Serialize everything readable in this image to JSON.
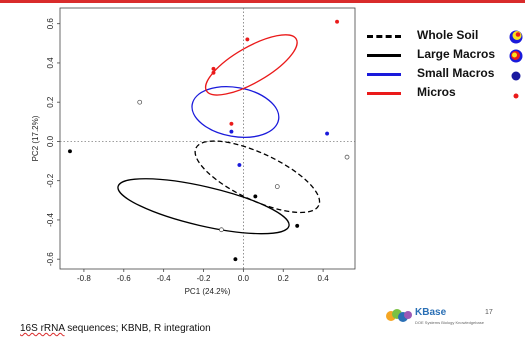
{
  "chart_data": {
    "type": "scatter",
    "xlabel": "PC1 (24.2%)",
    "ylabel": "PC2 (17.2%)",
    "xlim": [
      -0.92,
      0.56
    ],
    "ylim": [
      -0.65,
      0.68
    ],
    "xticks": [
      -0.8,
      -0.6,
      -0.4,
      -0.2,
      0.0,
      0.2,
      0.4
    ],
    "yticks": [
      -0.6,
      -0.4,
      -0.2,
      0.0,
      0.2,
      0.4,
      0.6
    ],
    "xtick_labels": [
      "-0.8",
      "-0.6",
      "-0.4",
      "-0.2",
      "0.0",
      "0.2",
      "0.4"
    ],
    "ytick_labels": [
      "-0.6",
      "-0.4",
      "-0.2",
      "0.0",
      "0.2",
      "0.4",
      "0.6"
    ],
    "reference_lines": {
      "x": 0,
      "y": 0,
      "style": "dotted"
    },
    "grid": false,
    "legend_position": "right",
    "series": [
      {
        "name": "Whole Soil",
        "color": "#000000",
        "marker": "open-circle",
        "line_style": "dashed",
        "points": [
          {
            "x": -0.52,
            "y": 0.2
          },
          {
            "x": 0.52,
            "y": -0.08
          },
          {
            "x": 0.17,
            "y": -0.23
          },
          {
            "x": -0.11,
            "y": -0.45
          }
        ],
        "ellipse": {
          "cx": 0.07,
          "cy": -0.18,
          "rx": 0.34,
          "ry": 0.12,
          "angle_deg": -25
        }
      },
      {
        "name": "Large Macros",
        "color": "#000000",
        "marker": "filled-circle",
        "line_style": "solid",
        "points": [
          {
            "x": -0.87,
            "y": -0.05
          },
          {
            "x": 0.06,
            "y": -0.28
          },
          {
            "x": 0.27,
            "y": -0.43
          },
          {
            "x": -0.04,
            "y": -0.6
          }
        ],
        "ellipse": {
          "cx": -0.2,
          "cy": -0.33,
          "rx": 0.44,
          "ry": 0.1,
          "angle_deg": -13
        }
      },
      {
        "name": "Small Macros",
        "color": "#1a1adb",
        "marker": "filled-circle",
        "line_style": "solid",
        "points": [
          {
            "x": -0.06,
            "y": 0.05
          },
          {
            "x": -0.02,
            "y": -0.12
          },
          {
            "x": 0.42,
            "y": 0.04
          }
        ],
        "ellipse": {
          "cx": -0.04,
          "cy": 0.15,
          "rx": 0.22,
          "ry": 0.125,
          "angle_deg": -10
        }
      },
      {
        "name": "Micros",
        "color": "#ea1a1a",
        "marker": "filled-circle",
        "line_style": "solid",
        "points": [
          {
            "x": -0.15,
            "y": 0.37
          },
          {
            "x": -0.15,
            "y": 0.35
          },
          {
            "x": 0.02,
            "y": 0.52
          },
          {
            "x": 0.47,
            "y": 0.61
          },
          {
            "x": -0.06,
            "y": 0.09
          }
        ],
        "ellipse": {
          "cx": 0.04,
          "cy": 0.39,
          "rx": 0.26,
          "ry": 0.09,
          "angle_deg": 30
        }
      }
    ]
  },
  "legend": {
    "items": [
      {
        "label": "Whole Soil",
        "color": "#000000",
        "dash": true,
        "icon": "tri-color-dot-icon"
      },
      {
        "label": "Large Macros",
        "color": "#000000",
        "dash": false,
        "icon": "tri-color-dot-icon"
      },
      {
        "label": "Small Macros",
        "color": "#1a1adb",
        "dash": false,
        "icon": "blue-dot-icon"
      },
      {
        "label": "Micros",
        "color": "#ea1a1a",
        "dash": false,
        "icon": "red-dot-icon"
      }
    ]
  },
  "footer": {
    "text_underlined": "16S rRNA",
    "text_rest": " sequences; KBNB, R integration"
  },
  "logo": {
    "name": "KBase",
    "tagline": "DOE Systems Biology Knowledgebase",
    "icon": "kbase-circles-icon"
  },
  "page_number": "17"
}
